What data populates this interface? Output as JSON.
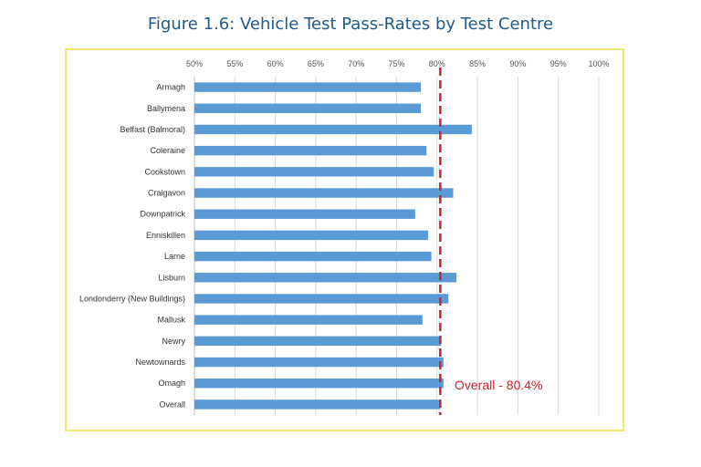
{
  "title": "Figure 1.6: Vehicle Test Pass-Rates by Test Centre",
  "chart_data": {
    "type": "bar",
    "orientation": "horizontal",
    "title": "Figure 1.6: Vehicle Test Pass-Rates by Test Centre",
    "xlabel": "",
    "ylabel": "",
    "xlim": [
      50,
      100
    ],
    "x_ticks": [
      50,
      55,
      60,
      65,
      70,
      75,
      80,
      85,
      90,
      95,
      100
    ],
    "x_tick_labels": [
      "50%",
      "55%",
      "60%",
      "65%",
      "70%",
      "75%",
      "80%",
      "85%",
      "90%",
      "95%",
      "100%"
    ],
    "x_axis_position": "top",
    "grid": "vertical",
    "categories": [
      "Armagh",
      "Ballymena",
      "Belfast (Balmoral)",
      "Coleraine",
      "Cookstown",
      "Craigavon",
      "Downpatrick",
      "Enniskillen",
      "Larne",
      "Lisburn",
      "Londonderry (New Buildings)",
      "Mallusk",
      "Newry",
      "Newtownards",
      "Omagh",
      "Overall"
    ],
    "values": [
      78.0,
      78.0,
      84.3,
      78.7,
      79.6,
      82.0,
      77.3,
      78.9,
      79.3,
      82.4,
      81.4,
      78.2,
      80.5,
      80.8,
      80.8,
      80.4
    ],
    "bar_color": "#5b9bd5",
    "reference_line": {
      "value": 80.4,
      "label": "Overall - 80.4%",
      "color": "#d0202a",
      "style": "dashed"
    }
  }
}
